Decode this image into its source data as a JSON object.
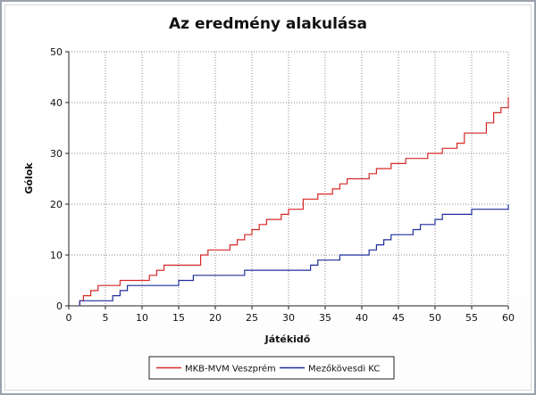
{
  "chart_data": {
    "type": "line",
    "title": "Az eredmény alakulása",
    "xlabel": "Játékidő",
    "ylabel": "Gólok",
    "xlim": [
      0,
      60
    ],
    "ylim": [
      0,
      50
    ],
    "xticks": [
      0,
      5,
      10,
      15,
      20,
      25,
      30,
      35,
      40,
      45,
      50,
      55,
      60
    ],
    "yticks": [
      0,
      10,
      20,
      30,
      40,
      50
    ],
    "grid": true,
    "legend_position": "bottom",
    "step": true,
    "series": [
      {
        "name": "MKB-MVM Veszprém",
        "color": "#d62828",
        "points": [
          [
            1.5,
            0
          ],
          [
            1.5,
            1
          ],
          [
            2,
            1
          ],
          [
            2,
            2
          ],
          [
            3,
            2
          ],
          [
            3,
            3
          ],
          [
            4,
            3
          ],
          [
            4,
            4
          ],
          [
            7,
            4
          ],
          [
            7,
            5
          ],
          [
            11,
            5
          ],
          [
            11,
            6
          ],
          [
            12,
            6
          ],
          [
            12,
            7
          ],
          [
            13,
            7
          ],
          [
            13,
            8
          ],
          [
            18,
            8
          ],
          [
            18,
            10
          ],
          [
            19,
            10
          ],
          [
            19,
            11
          ],
          [
            22,
            11
          ],
          [
            22,
            12
          ],
          [
            23,
            12
          ],
          [
            23,
            13
          ],
          [
            24,
            13
          ],
          [
            24,
            14
          ],
          [
            25,
            14
          ],
          [
            25,
            15
          ],
          [
            26,
            15
          ],
          [
            26,
            16
          ],
          [
            27,
            16
          ],
          [
            27,
            17
          ],
          [
            29,
            17
          ],
          [
            29,
            18
          ],
          [
            30,
            18
          ],
          [
            30,
            19
          ],
          [
            32,
            19
          ],
          [
            32,
            21
          ],
          [
            34,
            21
          ],
          [
            34,
            22
          ],
          [
            36,
            22
          ],
          [
            36,
            23
          ],
          [
            37,
            23
          ],
          [
            37,
            24
          ],
          [
            38,
            24
          ],
          [
            38,
            25
          ],
          [
            41,
            25
          ],
          [
            41,
            26
          ],
          [
            42,
            26
          ],
          [
            42,
            27
          ],
          [
            44,
            27
          ],
          [
            44,
            28
          ],
          [
            46,
            28
          ],
          [
            46,
            29
          ],
          [
            49,
            29
          ],
          [
            49,
            30
          ],
          [
            51,
            30
          ],
          [
            51,
            31
          ],
          [
            53,
            31
          ],
          [
            53,
            32
          ],
          [
            54,
            32
          ],
          [
            54,
            34
          ],
          [
            57,
            34
          ],
          [
            57,
            36
          ],
          [
            58,
            36
          ],
          [
            58,
            38
          ],
          [
            59,
            38
          ],
          [
            59,
            39
          ],
          [
            60,
            39
          ],
          [
            60,
            41
          ]
        ]
      },
      {
        "name": "Mezőkövesdi KC",
        "color": "#1f2f9c",
        "points": [
          [
            1.5,
            0
          ],
          [
            1.5,
            1
          ],
          [
            6,
            1
          ],
          [
            6,
            2
          ],
          [
            7,
            2
          ],
          [
            7,
            3
          ],
          [
            8,
            3
          ],
          [
            8,
            4
          ],
          [
            15,
            4
          ],
          [
            15,
            5
          ],
          [
            17,
            5
          ],
          [
            17,
            6
          ],
          [
            24,
            6
          ],
          [
            24,
            7
          ],
          [
            33,
            7
          ],
          [
            33,
            8
          ],
          [
            34,
            8
          ],
          [
            34,
            9
          ],
          [
            37,
            9
          ],
          [
            37,
            10
          ],
          [
            41,
            10
          ],
          [
            41,
            11
          ],
          [
            42,
            11
          ],
          [
            42,
            12
          ],
          [
            43,
            12
          ],
          [
            43,
            13
          ],
          [
            44,
            13
          ],
          [
            44,
            14
          ],
          [
            47,
            14
          ],
          [
            47,
            15
          ],
          [
            48,
            15
          ],
          [
            48,
            16
          ],
          [
            50,
            16
          ],
          [
            50,
            17
          ],
          [
            51,
            17
          ],
          [
            51,
            18
          ],
          [
            55,
            18
          ],
          [
            55,
            19
          ],
          [
            60,
            19
          ],
          [
            60,
            20
          ]
        ]
      }
    ]
  }
}
